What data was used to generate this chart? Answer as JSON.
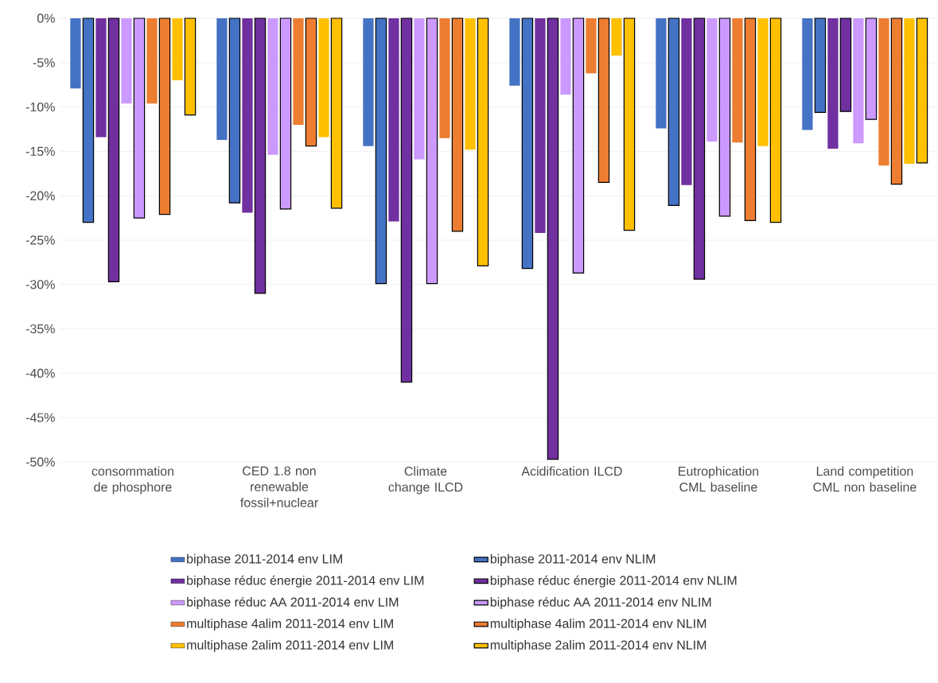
{
  "chart_data": {
    "type": "bar",
    "categories": [
      "consommation de phosphore",
      "CED 1.8 non renewable fossil+nuclear",
      "Climate change ILCD",
      "Acidification ILCD",
      "Eutrophication CML baseline",
      "Land competition CML non baseline"
    ],
    "series": [
      {
        "name": "biphase 2011-2014 env LIM",
        "color": "#4472c4",
        "values": [
          -7.9,
          -13.7,
          -14.4,
          -7.6,
          -12.4,
          -12.6
        ]
      },
      {
        "name": "biphase 2011-2014 env NLIM",
        "color": "#4472c4",
        "values": [
          -23.0,
          -20.8,
          -29.9,
          -28.2,
          -21.1,
          -10.6
        ]
      },
      {
        "name": "biphase réduc énergie 2011-2014 env LIM",
        "color": "#7030a0",
        "values": [
          -13.4,
          -21.9,
          -22.9,
          -24.2,
          -18.8,
          -14.7
        ]
      },
      {
        "name": "biphase réduc énergie 2011-2014 env NLIM",
        "color": "#7030a0",
        "values": [
          -29.7,
          -31.0,
          -41.0,
          -49.7,
          -29.4,
          -10.5
        ]
      },
      {
        "name": "biphase réduc AA 2011-2014 env LIM",
        "color": "#cc99ff",
        "values": [
          -9.6,
          -15.4,
          -15.9,
          -8.6,
          -13.9,
          -14.1
        ]
      },
      {
        "name": "biphase réduc AA 2011-2014 env NLIM",
        "color": "#cc99ff",
        "values": [
          -22.5,
          -21.5,
          -29.9,
          -28.7,
          -22.3,
          -11.4
        ]
      },
      {
        "name": "multiphase 4alim 2011-2014 env LIM",
        "color": "#ed7d31",
        "values": [
          -9.6,
          -12.0,
          -13.5,
          -6.2,
          -14.0,
          -16.6
        ]
      },
      {
        "name": "multiphase 4alim 2011-2014 env NLIM",
        "color": "#ed7d31",
        "values": [
          -22.1,
          -14.4,
          -24.0,
          -18.5,
          -22.8,
          -18.7
        ]
      },
      {
        "name": "multiphase 2alim 2011-2014 env LIM",
        "color": "#ffc000",
        "values": [
          -7.0,
          -13.4,
          -14.8,
          -4.2,
          -14.4,
          -16.4
        ]
      },
      {
        "name": "multiphase 2alim 2011-2014 env NLIM",
        "color": "#ffc000",
        "values": [
          -10.9,
          -21.4,
          -27.9,
          -23.9,
          -23.0,
          -16.3
        ]
      }
    ],
    "ylim": [
      -50,
      0
    ],
    "yticks": [
      {
        "value": 0,
        "label": "0%"
      },
      {
        "value": -5,
        "label": "-5%"
      },
      {
        "value": -10,
        "label": "-10%"
      },
      {
        "value": -15,
        "label": "-15%"
      },
      {
        "value": -20,
        "label": "-20%"
      },
      {
        "value": -25,
        "label": "-25%"
      },
      {
        "value": -30,
        "label": "-30%"
      },
      {
        "value": -35,
        "label": "-35%"
      },
      {
        "value": -40,
        "label": "-40%"
      },
      {
        "value": -45,
        "label": "-45%"
      },
      {
        "value": -50,
        "label": "-50%"
      }
    ],
    "grid": "y",
    "legend": "bottom"
  }
}
